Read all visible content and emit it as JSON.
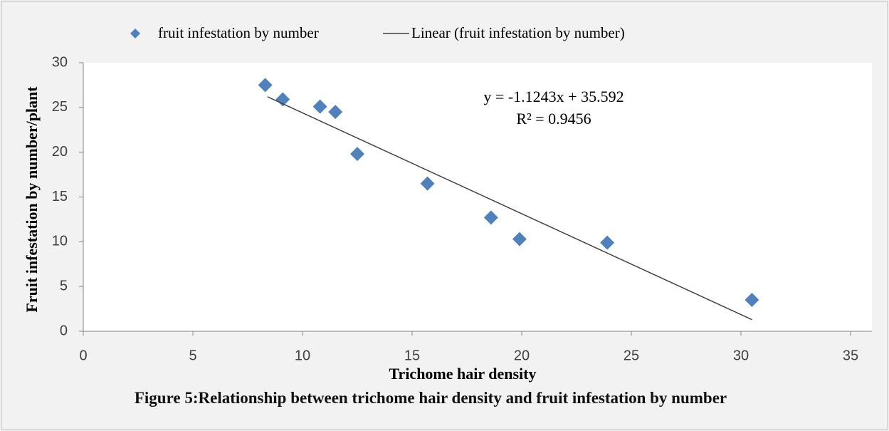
{
  "chart_data": {
    "type": "scatter",
    "title": "Figure 5:Relationship between trichome hair density and fruit infestation by number",
    "xlabel": "Trichome hair density",
    "ylabel": "Fruit infestation by number/plant",
    "annotations": [
      "y = -1.1243x + 35.592",
      "R² = 0.9456"
    ],
    "xlim": [
      0,
      35
    ],
    "xticks": [
      0,
      5,
      10,
      15,
      20,
      25,
      30,
      35
    ],
    "ylim": [
      0,
      30
    ],
    "yticks": [
      0,
      5,
      10,
      15,
      20,
      25,
      30
    ],
    "grid": false,
    "legend": "top",
    "series": [
      {
        "name": "fruit infestation by number",
        "color": "#4f81bd",
        "kind": "markers",
        "x": [
          8.3,
          9.1,
          10.8,
          11.5,
          12.5,
          15.7,
          18.6,
          19.9,
          23.9,
          30.5
        ],
        "values": [
          27.5,
          25.9,
          25.1,
          24.5,
          19.8,
          16.5,
          12.7,
          10.3,
          9.9,
          3.5
        ]
      },
      {
        "name": "Linear (fruit infestation by number)",
        "color": "#404040",
        "kind": "line",
        "x": [
          8.4,
          30.5
        ],
        "values": [
          26.2,
          1.3
        ]
      }
    ]
  }
}
